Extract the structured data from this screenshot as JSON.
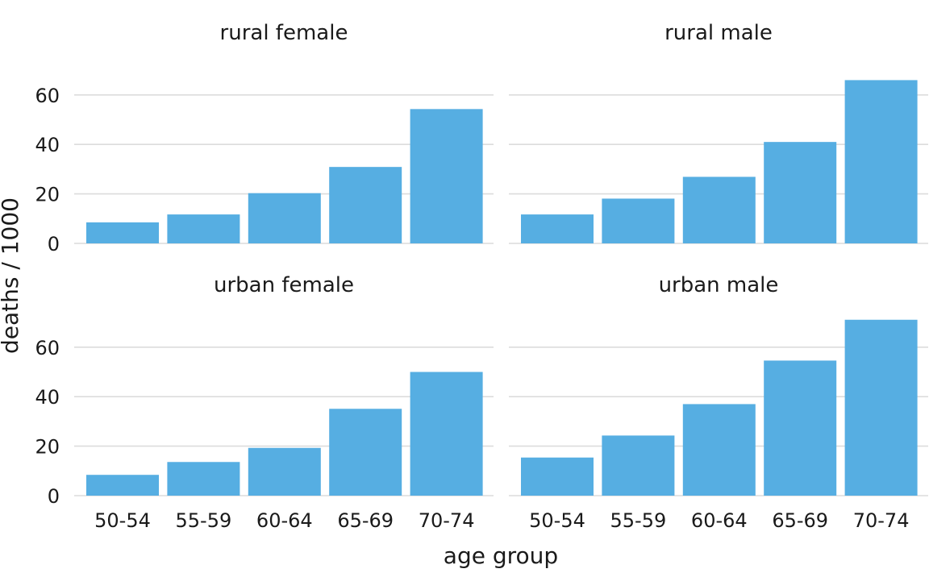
{
  "chart_data": {
    "type": "bar",
    "layout": "faceted 2x2",
    "xlabel": "age group",
    "ylabel": "deaths / 1000",
    "categories": [
      "50-54",
      "55-59",
      "60-64",
      "65-69",
      "70-74"
    ],
    "ylim": [
      0,
      72
    ],
    "yticks": [
      0,
      20,
      40,
      60
    ],
    "bar_color": "#56aee2",
    "grid": true,
    "panels": [
      {
        "title": "rural female",
        "values": [
          8.5,
          11.7,
          20.3,
          30.9,
          54.3
        ]
      },
      {
        "title": "rural male",
        "values": [
          11.7,
          18.1,
          26.9,
          41.0,
          66.0
        ]
      },
      {
        "title": "urban female",
        "values": [
          8.4,
          13.6,
          19.3,
          35.1,
          50.0
        ]
      },
      {
        "title": "urban male",
        "values": [
          15.4,
          24.3,
          37.0,
          54.6,
          71.1
        ]
      }
    ]
  }
}
